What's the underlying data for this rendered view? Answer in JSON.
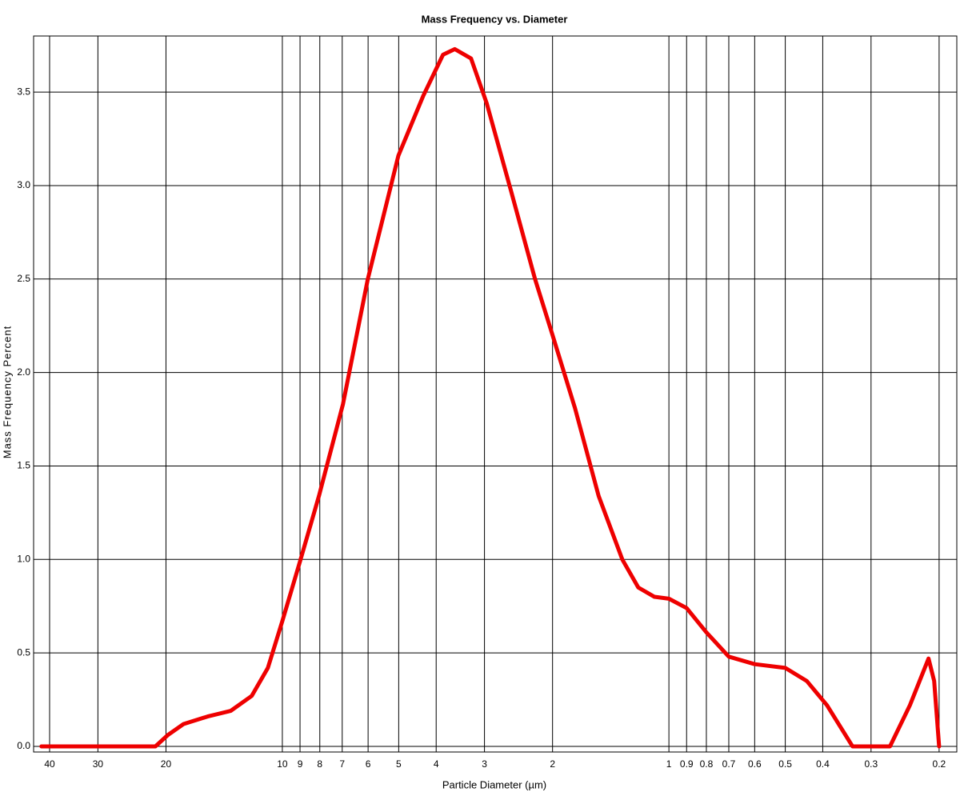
{
  "chart_data": {
    "type": "line",
    "title": "Mass Frequency vs. Diameter",
    "x_label": "Particle Diameter (µm)",
    "y_label": "Mass Frequency Percent",
    "x_log": true,
    "grid": true,
    "xlim": [
      44,
      0.18
    ],
    "ylim": [
      -0.03,
      3.8
    ],
    "xticks": [
      40,
      30,
      20,
      10,
      9,
      8,
      7,
      6,
      5,
      4,
      3,
      2,
      1,
      0.9,
      0.8,
      0.7,
      0.6,
      0.5,
      0.4,
      0.3,
      0.2
    ],
    "yticks": [
      {
        "value": 0,
        "label": "0.0"
      },
      0.5,
      {
        "value": 1,
        "label": "1.0"
      },
      1.5,
      {
        "value": 2,
        "label": "2.0"
      },
      2.5,
      {
        "value": 3,
        "label": "3.0"
      },
      3.5
    ],
    "x": [
      42.0,
      21.3,
      19.8,
      18.0,
      15.6,
      13.6,
      12.0,
      10.9,
      10,
      8.97,
      8.04,
      6.97,
      6.01,
      5.01,
      4.32,
      3.84,
      3.58,
      3.25,
      2.96,
      2.56,
      2.22,
      2.0,
      1.75,
      1.52,
      1.32,
      1.2,
      1.09,
      1.0,
      0.9,
      0.8,
      0.7,
      0.6,
      0.5,
      0.44,
      0.39,
      0.335,
      0.268,
      0.238,
      0.213,
      0.206,
      0.2
    ],
    "series": [
      {
        "name": "Mass Frequency",
        "color": "#ee0000",
        "values": [
          0,
          0,
          0.06,
          0.12,
          0.16,
          0.19,
          0.27,
          0.42,
          0.67,
          1.0,
          1.34,
          1.83,
          2.5,
          3.16,
          3.48,
          3.7,
          3.73,
          3.68,
          3.44,
          2.97,
          2.5,
          2.2,
          1.81,
          1.34,
          1.0,
          0.85,
          0.8,
          0.79,
          0.74,
          0.61,
          0.48,
          0.44,
          0.42,
          0.35,
          0.22,
          0,
          0,
          0.22,
          0.47,
          0.35,
          0
        ]
      }
    ]
  }
}
